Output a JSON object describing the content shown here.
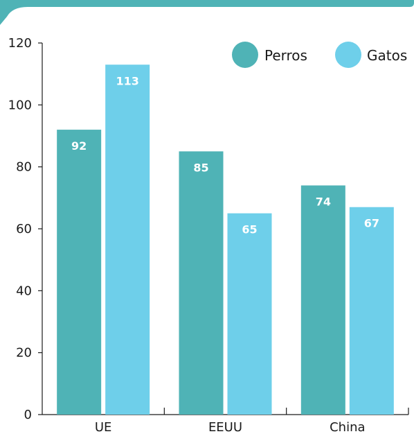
{
  "colors": {
    "header_bar": "#4fb3b6",
    "perros": "#4fb3b6",
    "gatos": "#6ecfea",
    "axis": "#1a1a1a"
  },
  "chart_data": {
    "type": "bar",
    "categories": [
      "UE",
      "EEUU",
      "China"
    ],
    "series": [
      {
        "name": "Perros",
        "values": [
          92,
          85,
          74
        ]
      },
      {
        "name": "Gatos",
        "values": [
          113,
          65,
          67
        ]
      }
    ],
    "yticks": [
      0,
      20,
      40,
      60,
      80,
      100,
      120
    ],
    "ylim": [
      0,
      120
    ],
    "legend": "top-right",
    "grid": false
  }
}
